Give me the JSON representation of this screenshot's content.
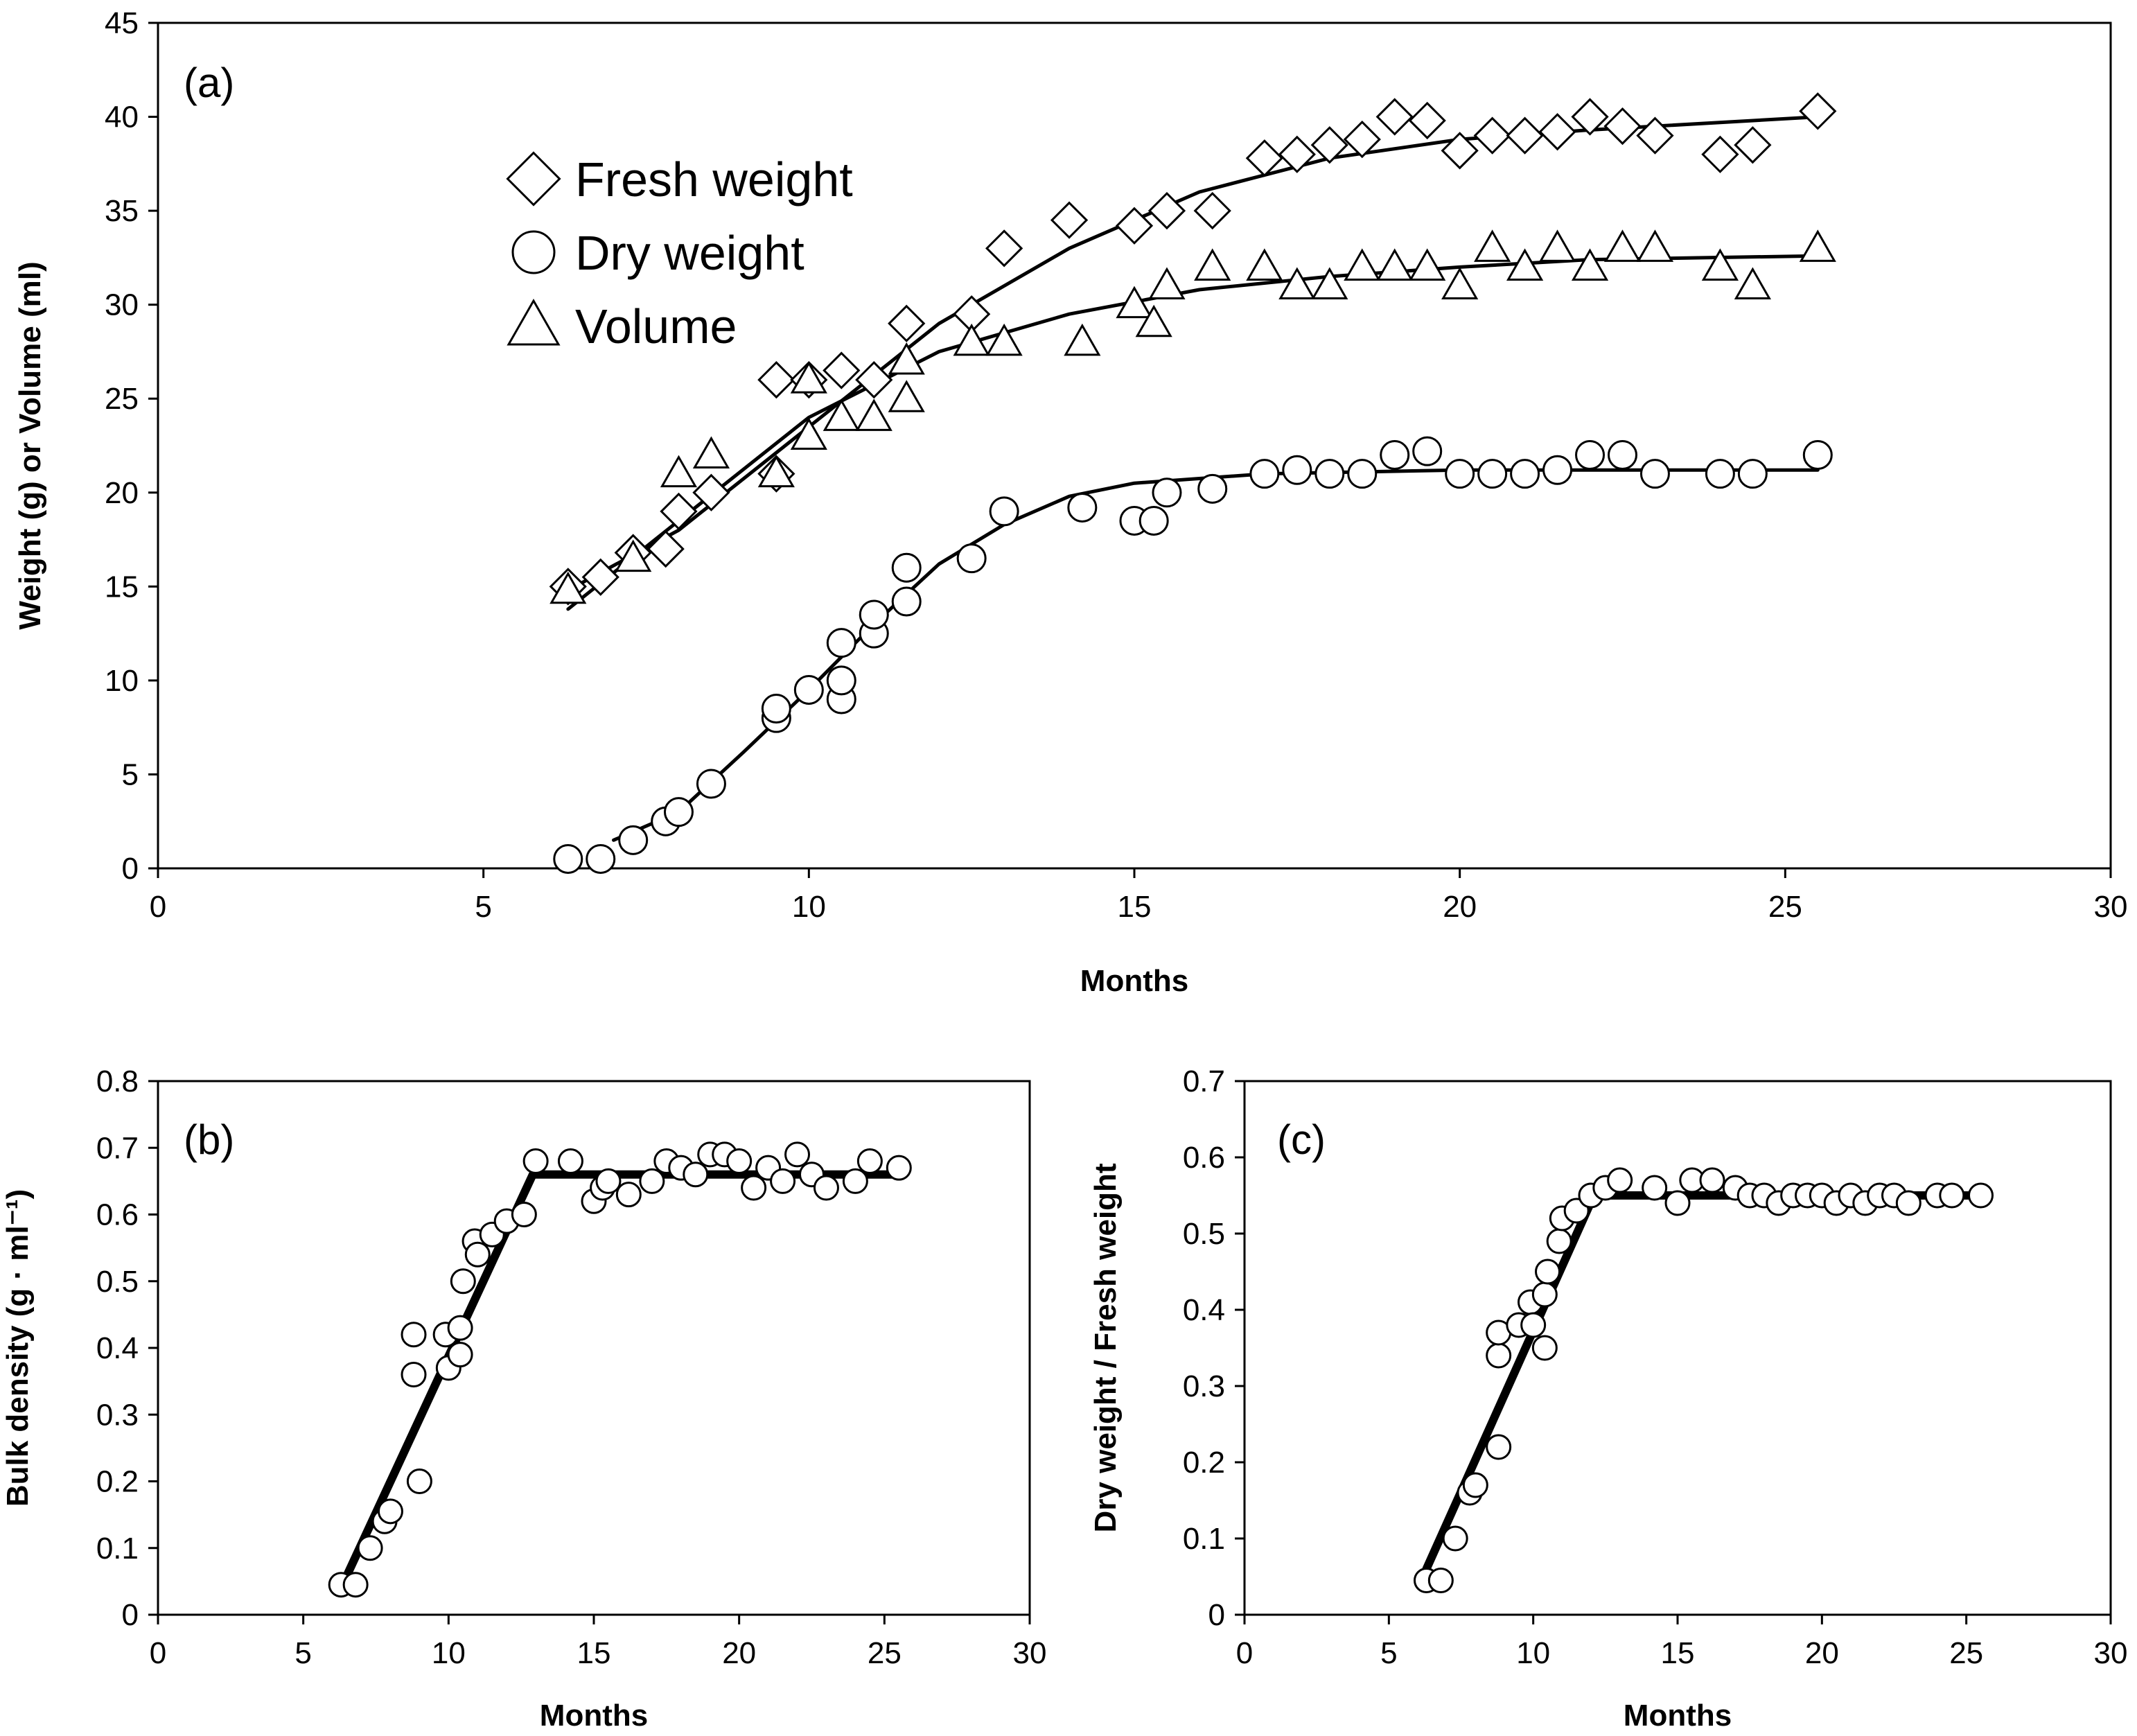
{
  "chart_data": [
    {
      "panel_label": "(a)",
      "type": "scatter",
      "xlabel": "Months",
      "ylabel": "Weight (g) or Volume (ml)",
      "xlim": [
        0,
        30
      ],
      "ylim": [
        0,
        45
      ],
      "xticks": [
        0,
        5,
        10,
        15,
        20,
        25,
        30
      ],
      "yticks": [
        0,
        5,
        10,
        15,
        20,
        25,
        30,
        35,
        40,
        45
      ],
      "legend_position": "top-left",
      "series": [
        {
          "name": "Fresh weight",
          "marker": "diamond",
          "points": [
            [
              6.3,
              15.0
            ],
            [
              6.8,
              15.5
            ],
            [
              7.3,
              16.8
            ],
            [
              7.8,
              17.0
            ],
            [
              8.0,
              19.0
            ],
            [
              8.5,
              20.0
            ],
            [
              9.5,
              21.0
            ],
            [
              9.5,
              26.0
            ],
            [
              10.0,
              26.0
            ],
            [
              10.5,
              26.5
            ],
            [
              11.0,
              26.0
            ],
            [
              11.5,
              29.0
            ],
            [
              12.5,
              29.5
            ],
            [
              13.0,
              33.0
            ],
            [
              14.0,
              34.5
            ],
            [
              15.0,
              34.2
            ],
            [
              15.5,
              35.0
            ],
            [
              16.2,
              35.0
            ],
            [
              17.0,
              37.8
            ],
            [
              17.5,
              38.0
            ],
            [
              18.0,
              38.5
            ],
            [
              18.5,
              38.8
            ],
            [
              19.0,
              40.0
            ],
            [
              19.5,
              39.8
            ],
            [
              20.0,
              38.2
            ],
            [
              20.5,
              39.0
            ],
            [
              21.0,
              39.0
            ],
            [
              21.5,
              39.2
            ],
            [
              22.0,
              40.0
            ],
            [
              22.5,
              39.5
            ],
            [
              23.0,
              39.0
            ],
            [
              24.0,
              38.0
            ],
            [
              24.5,
              38.5
            ],
            [
              25.5,
              40.3
            ]
          ],
          "fit": [
            [
              6.3,
              14.8
            ],
            [
              8.0,
              18.0
            ],
            [
              10.0,
              23.5
            ],
            [
              12.0,
              29.0
            ],
            [
              14.0,
              33.0
            ],
            [
              16.0,
              36.0
            ],
            [
              18.0,
              37.8
            ],
            [
              20.0,
              38.8
            ],
            [
              22.0,
              39.3
            ],
            [
              25.5,
              40.0
            ]
          ]
        },
        {
          "name": "Dry weight",
          "marker": "circle",
          "points": [
            [
              6.3,
              0.5
            ],
            [
              6.8,
              0.5
            ],
            [
              7.3,
              1.5
            ],
            [
              7.8,
              2.5
            ],
            [
              8.0,
              3.0
            ],
            [
              8.5,
              4.5
            ],
            [
              9.5,
              8.0
            ],
            [
              9.5,
              8.5
            ],
            [
              10.0,
              9.5
            ],
            [
              10.5,
              9.0
            ],
            [
              10.5,
              10.0
            ],
            [
              10.5,
              12.0
            ],
            [
              11.0,
              12.5
            ],
            [
              11.0,
              13.5
            ],
            [
              11.5,
              14.2
            ],
            [
              11.5,
              16.0
            ],
            [
              12.5,
              16.5
            ],
            [
              13.0,
              19.0
            ],
            [
              14.2,
              19.2
            ],
            [
              15.0,
              18.5
            ],
            [
              15.3,
              18.5
            ],
            [
              15.5,
              20.0
            ],
            [
              16.2,
              20.2
            ],
            [
              17.0,
              21.0
            ],
            [
              17.5,
              21.2
            ],
            [
              18.0,
              21.0
            ],
            [
              18.5,
              21.0
            ],
            [
              19.0,
              22.0
            ],
            [
              19.5,
              22.2
            ],
            [
              20.0,
              21.0
            ],
            [
              20.5,
              21.0
            ],
            [
              21.0,
              21.0
            ],
            [
              21.5,
              21.2
            ],
            [
              22.0,
              22.0
            ],
            [
              22.5,
              22.0
            ],
            [
              23.0,
              21.0
            ],
            [
              24.0,
              21.0
            ],
            [
              24.5,
              21.0
            ],
            [
              25.5,
              22.0
            ]
          ],
          "fit": [
            [
              7.0,
              1.5
            ],
            [
              8.0,
              3.0
            ],
            [
              9.0,
              6.2
            ],
            [
              10.0,
              9.5
            ],
            [
              11.0,
              13.0
            ],
            [
              12.0,
              16.2
            ],
            [
              13.0,
              18.3
            ],
            [
              14.0,
              19.8
            ],
            [
              15.0,
              20.5
            ],
            [
              17.0,
              21.0
            ],
            [
              20.0,
              21.2
            ],
            [
              25.5,
              21.2
            ]
          ]
        },
        {
          "name": "Volume",
          "marker": "triangle",
          "points": [
            [
              6.3,
              14.8
            ],
            [
              7.3,
              16.5
            ],
            [
              8.0,
              21.0
            ],
            [
              8.5,
              22.0
            ],
            [
              9.5,
              21.0
            ],
            [
              10.0,
              23.0
            ],
            [
              10.0,
              26.0
            ],
            [
              10.5,
              24.0
            ],
            [
              11.0,
              24.0
            ],
            [
              11.5,
              27.0
            ],
            [
              11.5,
              25.0
            ],
            [
              12.5,
              28.0
            ],
            [
              13.0,
              28.0
            ],
            [
              14.2,
              28.0
            ],
            [
              15.0,
              30.0
            ],
            [
              15.3,
              29.0
            ],
            [
              15.5,
              31.0
            ],
            [
              16.2,
              32.0
            ],
            [
              17.0,
              32.0
            ],
            [
              17.5,
              31.0
            ],
            [
              18.0,
              31.0
            ],
            [
              18.5,
              32.0
            ],
            [
              19.0,
              32.0
            ],
            [
              19.5,
              32.0
            ],
            [
              20.0,
              31.0
            ],
            [
              20.5,
              33.0
            ],
            [
              21.0,
              32.0
            ],
            [
              21.5,
              33.0
            ],
            [
              22.0,
              32.0
            ],
            [
              22.5,
              33.0
            ],
            [
              23.0,
              33.0
            ],
            [
              24.0,
              32.0
            ],
            [
              24.5,
              31.0
            ],
            [
              25.5,
              33.0
            ]
          ],
          "fit": [
            [
              6.3,
              13.8
            ],
            [
              8.0,
              18.5
            ],
            [
              10.0,
              24.0
            ],
            [
              12.0,
              27.5
            ],
            [
              14.0,
              29.5
            ],
            [
              16.0,
              30.8
            ],
            [
              18.0,
              31.5
            ],
            [
              20.0,
              32.0
            ],
            [
              22.0,
              32.4
            ],
            [
              25.5,
              32.6
            ]
          ]
        }
      ]
    },
    {
      "panel_label": "(b)",
      "type": "scatter",
      "xlabel": "Months",
      "ylabel": "Bulk density (g · ml⁻¹)",
      "xlim": [
        0,
        30
      ],
      "ylim": [
        0,
        0.8
      ],
      "xticks": [
        0,
        5,
        10,
        15,
        20,
        25,
        30
      ],
      "yticks": [
        0,
        0.1,
        0.2,
        0.3,
        0.4,
        0.5,
        0.6,
        0.7,
        0.8
      ],
      "yticklabels": [
        "0",
        "0.1",
        "0.2",
        "0.3",
        "0.4",
        "0.5",
        "0.6",
        "0.7",
        "0.8"
      ],
      "series": [
        {
          "marker": "circle",
          "points": [
            [
              6.3,
              0.045
            ],
            [
              6.8,
              0.045
            ],
            [
              7.3,
              0.1
            ],
            [
              7.8,
              0.14
            ],
            [
              8.0,
              0.155
            ],
            [
              8.8,
              0.36
            ],
            [
              8.8,
              0.42
            ],
            [
              9.0,
              0.2
            ],
            [
              9.9,
              0.42
            ],
            [
              10.0,
              0.37
            ],
            [
              10.4,
              0.39
            ],
            [
              10.4,
              0.43
            ],
            [
              10.5,
              0.5
            ],
            [
              10.9,
              0.56
            ],
            [
              11.0,
              0.54
            ],
            [
              11.5,
              0.57
            ],
            [
              12.0,
              0.59
            ],
            [
              12.6,
              0.6
            ],
            [
              13.0,
              0.68
            ],
            [
              14.2,
              0.68
            ],
            [
              15.0,
              0.62
            ],
            [
              15.3,
              0.64
            ],
            [
              15.5,
              0.65
            ],
            [
              16.2,
              0.63
            ],
            [
              17.0,
              0.65
            ],
            [
              17.5,
              0.68
            ],
            [
              18.0,
              0.67
            ],
            [
              18.5,
              0.66
            ],
            [
              19.0,
              0.69
            ],
            [
              19.5,
              0.69
            ],
            [
              20.0,
              0.68
            ],
            [
              20.5,
              0.64
            ],
            [
              21.0,
              0.67
            ],
            [
              21.5,
              0.65
            ],
            [
              22.0,
              0.69
            ],
            [
              22.5,
              0.66
            ],
            [
              23.0,
              0.64
            ],
            [
              24.0,
              0.65
            ],
            [
              24.5,
              0.68
            ],
            [
              25.5,
              0.67
            ]
          ],
          "fit": [
            [
              6.3,
              0.04
            ],
            [
              12.9,
              0.66
            ],
            [
              25.5,
              0.66
            ]
          ]
        }
      ]
    },
    {
      "panel_label": "(c)",
      "type": "scatter",
      "xlabel": "Months",
      "ylabel": "Dry weight / Fresh weight",
      "xlim": [
        0,
        30
      ],
      "ylim": [
        0,
        0.7
      ],
      "xticks": [
        0,
        5,
        10,
        15,
        20,
        25,
        30
      ],
      "yticks": [
        0,
        0.1,
        0.2,
        0.3,
        0.4,
        0.5,
        0.6,
        0.7
      ],
      "yticklabels": [
        "0",
        "0.1",
        "0.2",
        "0.3",
        "0.4",
        "0.5",
        "0.6",
        "0.7"
      ],
      "series": [
        {
          "marker": "circle",
          "points": [
            [
              6.3,
              0.045
            ],
            [
              6.8,
              0.045
            ],
            [
              7.3,
              0.1
            ],
            [
              7.8,
              0.16
            ],
            [
              8.0,
              0.17
            ],
            [
              8.8,
              0.22
            ],
            [
              8.8,
              0.34
            ],
            [
              8.8,
              0.37
            ],
            [
              9.5,
              0.38
            ],
            [
              9.9,
              0.41
            ],
            [
              10.0,
              0.38
            ],
            [
              10.4,
              0.35
            ],
            [
              10.4,
              0.42
            ],
            [
              10.5,
              0.45
            ],
            [
              10.9,
              0.49
            ],
            [
              11.0,
              0.52
            ],
            [
              11.5,
              0.53
            ],
            [
              12.0,
              0.55
            ],
            [
              12.5,
              0.56
            ],
            [
              13.0,
              0.57
            ],
            [
              14.2,
              0.56
            ],
            [
              15.0,
              0.54
            ],
            [
              15.5,
              0.57
            ],
            [
              16.2,
              0.57
            ],
            [
              17.0,
              0.56
            ],
            [
              17.5,
              0.55
            ],
            [
              18.0,
              0.55
            ],
            [
              18.5,
              0.54
            ],
            [
              19.0,
              0.55
            ],
            [
              19.5,
              0.55
            ],
            [
              20.0,
              0.55
            ],
            [
              20.5,
              0.54
            ],
            [
              21.0,
              0.55
            ],
            [
              21.5,
              0.54
            ],
            [
              22.0,
              0.55
            ],
            [
              22.5,
              0.55
            ],
            [
              23.0,
              0.54
            ],
            [
              24.0,
              0.55
            ],
            [
              24.5,
              0.55
            ],
            [
              25.5,
              0.55
            ]
          ],
          "fit": [
            [
              6.3,
              0.06
            ],
            [
              12.1,
              0.55
            ],
            [
              25.5,
              0.55
            ]
          ]
        }
      ]
    }
  ]
}
